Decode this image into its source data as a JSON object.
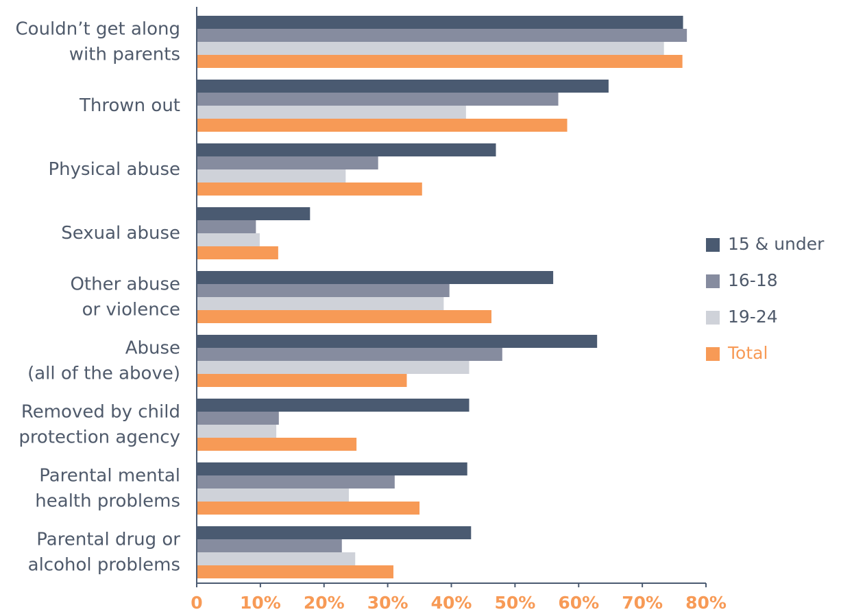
{
  "chart_data": {
    "type": "hbar",
    "categories": [
      "Couldn’t get along\nwith parents",
      "Thrown out",
      "Physical abuse",
      "Sexual abuse",
      "Other abuse\nor violence",
      "Abuse\n(all of the above)",
      "Removed by child\nprotection agency",
      "Parental mental\nhealth problems",
      "Parental drug or\nalcohol problems"
    ],
    "series": [
      {
        "name": "15 & under",
        "color": "#4a5a71",
        "values": [
          76.4,
          64.7,
          47.0,
          17.8,
          56.0,
          62.9,
          42.8,
          42.5,
          43.1
        ]
      },
      {
        "name": "16-18",
        "color": "#868c9f",
        "values": [
          77.0,
          56.8,
          28.5,
          9.3,
          39.7,
          48.0,
          12.9,
          31.1,
          22.8
        ]
      },
      {
        "name": "19-24",
        "color": "#cfd2d9",
        "values": [
          73.4,
          42.3,
          23.4,
          9.9,
          38.8,
          42.8,
          12.5,
          23.9,
          24.9
        ]
      },
      {
        "name": "Total",
        "color": "#f79a56",
        "values": [
          76.3,
          58.2,
          35.4,
          12.8,
          46.3,
          33.0,
          25.1,
          35.0,
          30.9
        ]
      }
    ],
    "xlim": [
      0,
      80
    ],
    "xticks": [
      0,
      {
        "value": 10,
        "label": "10%"
      },
      {
        "value": 20,
        "label": "20%"
      },
      {
        "value": 30,
        "label": "30%"
      },
      {
        "value": 40,
        "label": "40%"
      },
      {
        "value": 50,
        "label": "50%"
      },
      {
        "value": 60,
        "label": "60%"
      },
      {
        "value": 70,
        "label": "70%"
      },
      {
        "value": 80,
        "label": "80%"
      }
    ],
    "legend": "right"
  }
}
